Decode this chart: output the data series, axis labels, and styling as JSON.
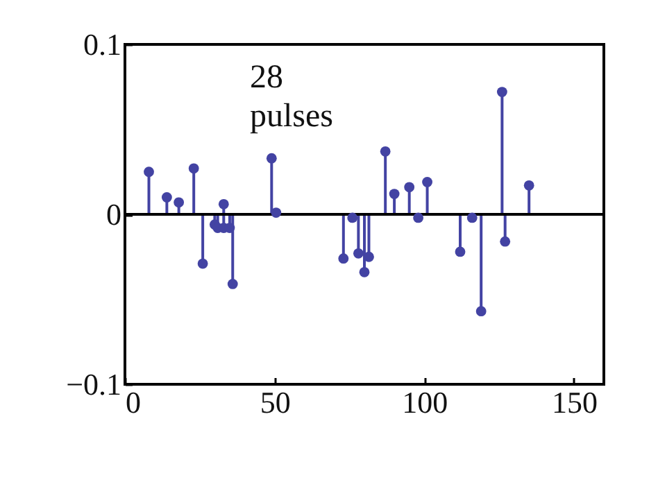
{
  "chart_data": {
    "type": "lollipop",
    "annotations": [
      "28 pulses"
    ],
    "x": [
      8,
      14,
      18,
      23,
      26,
      30,
      31,
      33,
      33,
      35,
      36,
      49,
      50.5,
      73,
      76,
      78,
      80,
      81.5,
      87,
      90,
      95,
      98,
      101,
      112,
      116,
      119,
      126,
      127,
      135
    ],
    "series": [
      {
        "color": "#4343a3",
        "values": [
          0.025,
          0.01,
          0.007,
          0.027,
          -0.029,
          -0.006,
          -0.008,
          0.006,
          -0.008,
          -0.008,
          -0.041,
          0.033,
          0.001,
          -0.026,
          -0.002,
          -0.023,
          -0.034,
          -0.025,
          0.037,
          0.012,
          0.016,
          -0.002,
          0.019,
          -0.022,
          -0.002,
          -0.057,
          0.072,
          -0.016,
          0.017
        ]
      }
    ],
    "xlim": [
      0,
      160
    ],
    "xticks": [
      0,
      50,
      100,
      150
    ],
    "ylim": [
      -0.1,
      0.1
    ],
    "yticks": [
      {
        "value": -0.1,
        "label": "−0.1"
      },
      0,
      0.1
    ],
    "ref_lines": [
      {
        "axis": "y",
        "value": 0,
        "color": "#000000"
      }
    ],
    "grid": false,
    "marker": "circle"
  }
}
